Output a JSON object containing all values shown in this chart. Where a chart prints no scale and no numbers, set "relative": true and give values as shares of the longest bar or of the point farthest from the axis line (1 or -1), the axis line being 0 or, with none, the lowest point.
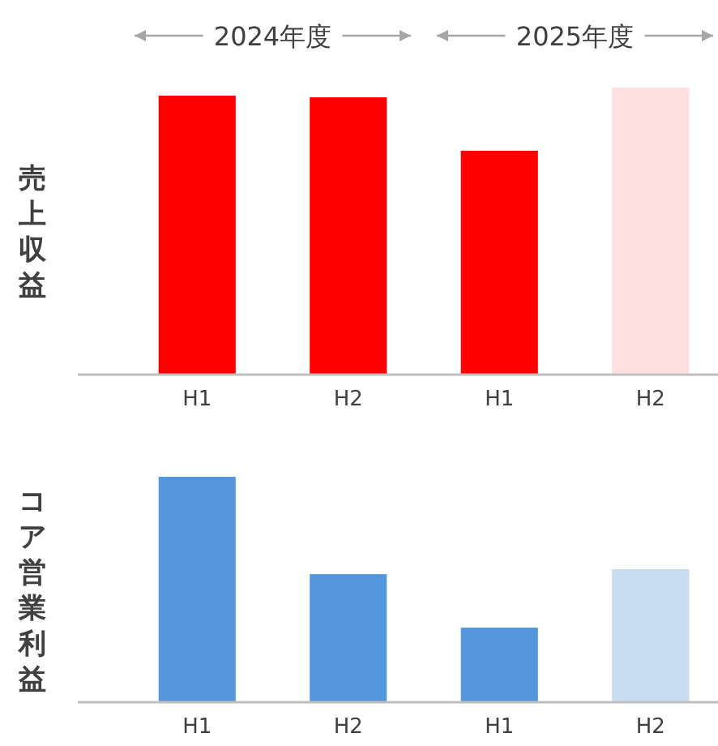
{
  "chart_data": [
    {
      "type": "bar",
      "ylabel": "売上収益",
      "annotations": [
        "2024年度",
        "2025年度"
      ],
      "categories": [
        "H1",
        "H2",
        "H1",
        "H2"
      ],
      "values": [
        0.972,
        0.966,
        0.78,
        1
      ],
      "colors": [
        "#ff0000",
        "#ff0000",
        "#ff0000",
        "#ffe0e0"
      ],
      "relative": true
    },
    {
      "type": "bar",
      "ylabel": "コア営業利益",
      "categories": [
        "H1",
        "H2",
        "H1",
        "H2"
      ],
      "values": [
        1,
        0.568,
        0.331,
        0.59
      ],
      "colors": [
        "#5597dc",
        "#5597dc",
        "#5597dc",
        "#c9ddf2"
      ],
      "relative": true
    }
  ]
}
